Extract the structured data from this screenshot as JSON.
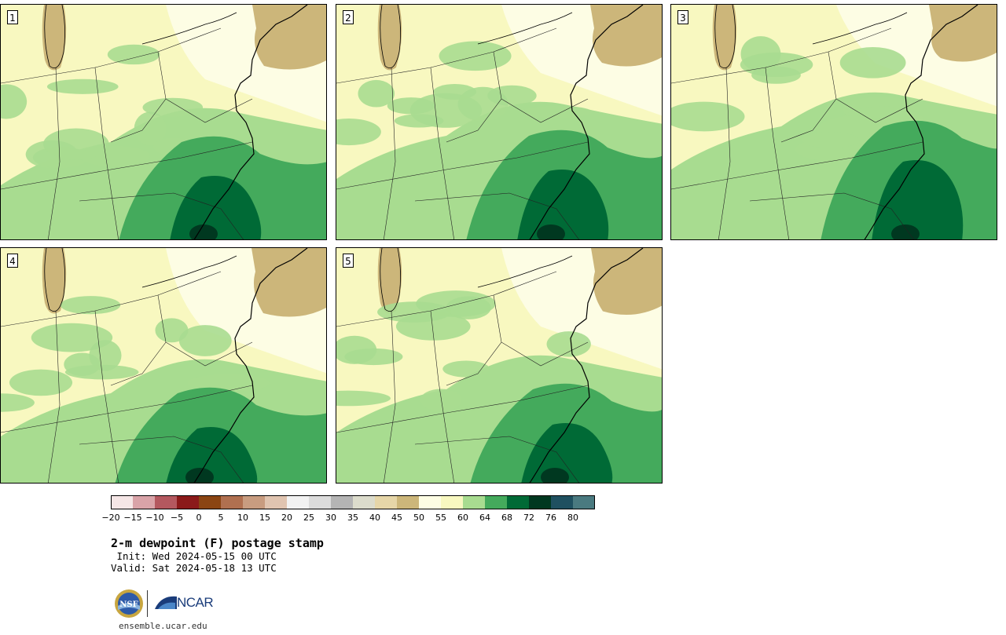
{
  "panels": [
    {
      "label": "1",
      "seed": 1
    },
    {
      "label": "2",
      "seed": 2
    },
    {
      "label": "3",
      "seed": 3
    },
    {
      "label": "4",
      "seed": 4
    },
    {
      "label": "5",
      "seed": 5
    }
  ],
  "colorbar": {
    "ticks": [
      "−20",
      "−15",
      "−10",
      "−5",
      "0",
      "5",
      "10",
      "15",
      "20",
      "25",
      "30",
      "35",
      "40",
      "45",
      "50",
      "55",
      "60",
      "64",
      "68",
      "72",
      "76",
      "80"
    ],
    "colors": [
      "#f5e6e6",
      "#d9a3a8",
      "#b4585f",
      "#8b1a1a",
      "#8b4513",
      "#b07050",
      "#c89c80",
      "#e0c4b0",
      "#f2f2f2",
      "#dcdcdc",
      "#b4b4b4",
      "#dcdccc",
      "#e6d6a8",
      "#ccb67a",
      "#fdfde4",
      "#f8f8c0",
      "#a8dc90",
      "#44aa5c",
      "#006a36",
      "#003820",
      "#1f5060",
      "#4a7a80"
    ]
  },
  "titles": {
    "title": "2-m dewpoint (F) postage stamp",
    "init": " Init: Wed 2024-05-15 00 UTC",
    "valid": "Valid: Sat 2024-05-18 13 UTC"
  },
  "logos": {
    "nsf": "NSF",
    "ncar": "NCAR"
  },
  "footer": {
    "url": "ensemble.ucar.edu"
  }
}
